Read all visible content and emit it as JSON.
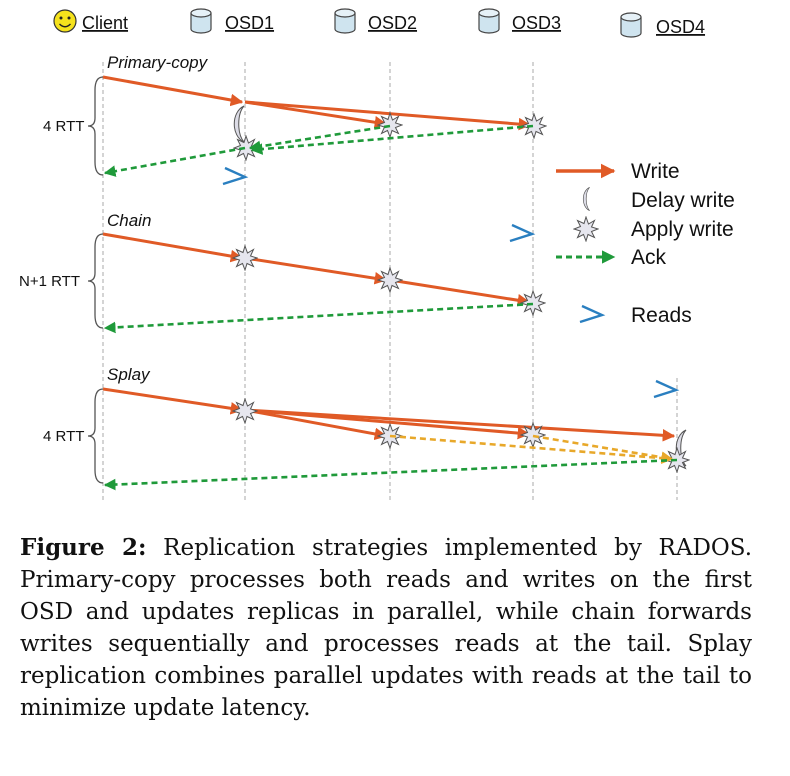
{
  "header": {
    "client": "Client",
    "osds": [
      "OSD1",
      "OSD2",
      "OSD3",
      "OSD4"
    ]
  },
  "modes": [
    {
      "name": "Primary-copy",
      "rtt": "4 RTT"
    },
    {
      "name": "Chain",
      "rtt": "N+1 RTT"
    },
    {
      "name": "Splay",
      "rtt": "4 RTT"
    }
  ],
  "legend": {
    "write": "Write",
    "delay_write": "Delay write",
    "apply_write": "Apply write",
    "ack": "Ack",
    "reads": "Reads"
  },
  "colors": {
    "write": "#e05a26",
    "ack": "#1f9a3a",
    "forward": "#e8a82a",
    "read": "#2a7fc0",
    "grid": "#bdbdbd",
    "face": "#f5e21c",
    "osd": "#cfe4ef"
  },
  "caption": {
    "label": "Figure 2:",
    "text": "Replication strategies implemented by RADOS. Primary-copy processes both reads and writes on the first OSD and updates replicas in parallel, while chain forwards writes sequentially and processes reads at the tail. Splay replication combines parallel updates with reads at the tail to minimize update latency."
  }
}
